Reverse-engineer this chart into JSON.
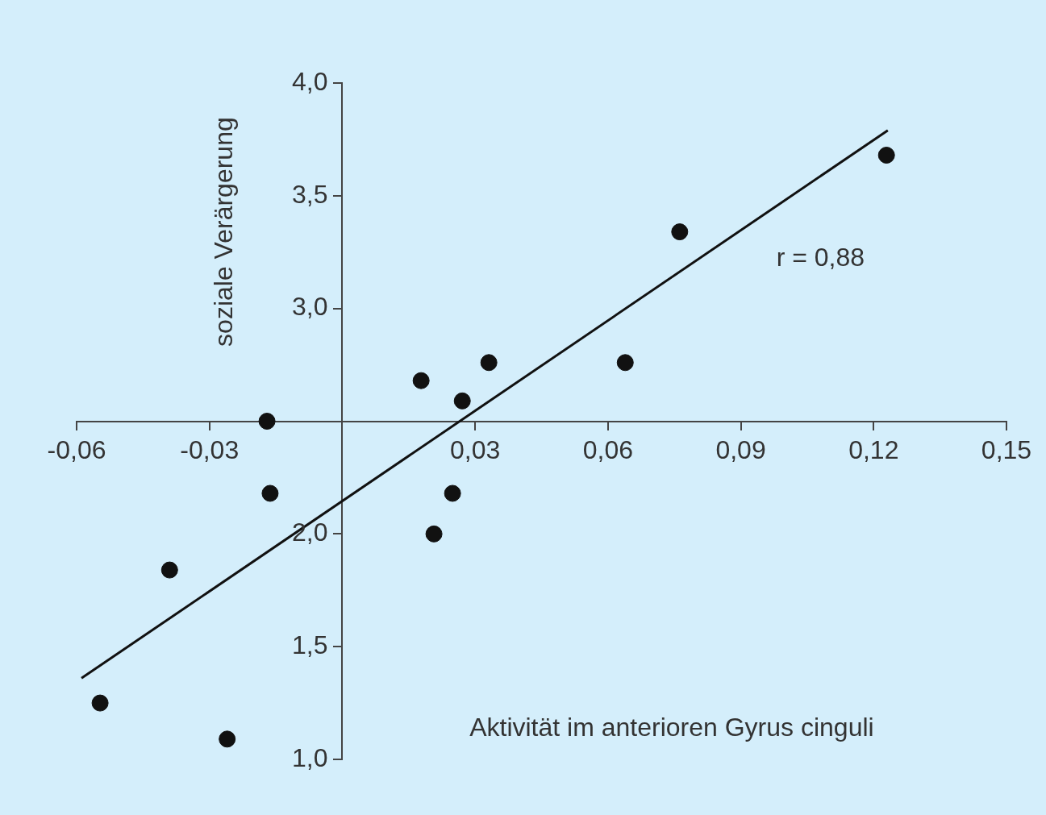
{
  "chart_data": {
    "type": "scatter",
    "xlabel": "Aktivität im anterioren Gyrus cinguli",
    "ylabel": "soziale Verärgerung",
    "annotations": [
      "r = 0,88"
    ],
    "series": [
      {
        "marker": "circle",
        "color": "#111111",
        "x": [
          -0.0547,
          -0.039,
          -0.026,
          -0.017,
          -0.0163,
          0.0178,
          0.0207,
          0.0249,
          0.0271,
          0.0331,
          0.0639,
          0.0762,
          0.1229
        ],
        "values": [
          1.25,
          1.84,
          1.09,
          2.5,
          2.18,
          2.68,
          2.0,
          2.18,
          2.59,
          2.76,
          2.76,
          3.34,
          3.68
        ]
      },
      {
        "type": "line",
        "marker": "none",
        "color": "#111111",
        "x": [
          -0.0589,
          0.1232
        ],
        "values": [
          1.36,
          3.79
        ]
      }
    ],
    "xlim": [
      -0.06,
      0.15
    ],
    "xticks": [
      {
        "value": -0.06,
        "label": "-0,06"
      },
      {
        "value": -0.03,
        "label": "-0,03"
      },
      {
        "value": 0.03,
        "label": "0,03"
      },
      {
        "value": 0.06,
        "label": "0,06"
      },
      {
        "value": 0.09,
        "label": "0,09"
      },
      {
        "value": 0.12,
        "label": "0,12"
      },
      {
        "value": 0.15,
        "label": "0,15"
      }
    ],
    "ylim": [
      1.0,
      4.0
    ],
    "yticks": [
      {
        "value": 1.0,
        "label": "1,0"
      },
      {
        "value": 1.5,
        "label": "1,5"
      },
      {
        "value": 2.0,
        "label": "2,0"
      },
      {
        "value": 3.0,
        "label": "3,0"
      },
      {
        "value": 3.5,
        "label": "3,5"
      },
      {
        "value": 4.0,
        "label": "4,0"
      }
    ],
    "grid": false,
    "legend": false,
    "line_style": "solid"
  }
}
